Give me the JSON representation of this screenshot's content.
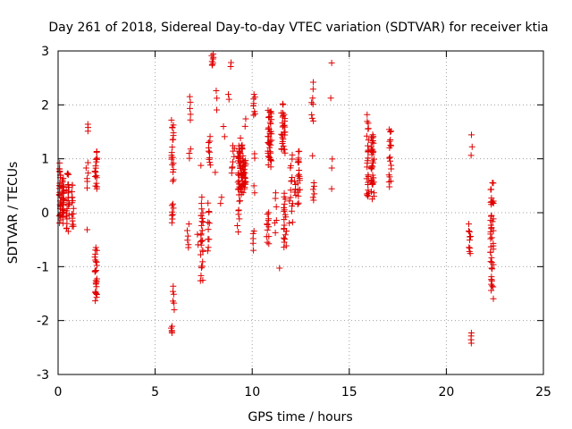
{
  "chart_data": {
    "type": "scatter",
    "title": "Day 261 of 2018, Sidereal Day-to-day VTEC variation (SDTVAR) for receiver ktia",
    "xlabel": "GPS time / hours",
    "ylabel": "SDTVAR / TECUs",
    "xlim": [
      0,
      25
    ],
    "ylim": [
      -3,
      3
    ],
    "grid": true,
    "marker": "+",
    "x_ticks": [
      "0",
      "5",
      "10",
      "15",
      "20",
      "25"
    ],
    "y_ticks": [
      "-3",
      "-2",
      "-1",
      "0",
      "1",
      "2",
      "3"
    ],
    "colors": {
      "series": "#e00000",
      "grid": "#a0a0a0",
      "axis": "#000000"
    },
    "clusters": [
      {
        "x": 0.1,
        "y_min": -0.3,
        "y_max": 0.95,
        "n": 30,
        "spread": 0.05
      },
      {
        "x": 0.25,
        "y_min": -0.2,
        "y_max": 0.7,
        "n": 25,
        "spread": 0.05
      },
      {
        "x": 0.5,
        "y_min": -0.4,
        "y_max": 0.8,
        "n": 25,
        "spread": 0.08
      },
      {
        "x": 0.75,
        "y_min": -0.4,
        "y_max": 0.6,
        "n": 15,
        "spread": 0.05
      },
      {
        "x": 1.5,
        "y_min": 0.4,
        "y_max": 1.0,
        "n": 6,
        "spread": 0.06
      },
      {
        "x": 1.55,
        "y_min": 1.5,
        "y_max": 1.65,
        "n": 3,
        "spread": 0.02
      },
      {
        "x": 1.5,
        "y_min": -0.33,
        "y_max": -0.3,
        "n": 1,
        "spread": 0.01
      },
      {
        "x": 1.95,
        "y_min": -1.7,
        "y_max": -0.6,
        "n": 25,
        "spread": 0.06
      },
      {
        "x": 1.95,
        "y_min": 0.4,
        "y_max": 1.2,
        "n": 18,
        "spread": 0.06
      },
      {
        "x": 5.85,
        "y_min": -2.25,
        "y_max": -2.1,
        "n": 5,
        "spread": 0.03
      },
      {
        "x": 5.95,
        "y_min": -1.8,
        "y_max": -1.35,
        "n": 6,
        "spread": 0.04
      },
      {
        "x": 5.9,
        "y_min": -0.2,
        "y_max": 0.2,
        "n": 8,
        "spread": 0.05
      },
      {
        "x": 5.9,
        "y_min": 0.4,
        "y_max": 1.9,
        "n": 20,
        "spread": 0.06
      },
      {
        "x": 6.7,
        "y_min": -0.7,
        "y_max": -0.2,
        "n": 6,
        "spread": 0.05
      },
      {
        "x": 6.8,
        "y_min": 1.0,
        "y_max": 1.2,
        "n": 3,
        "spread": 0.04
      },
      {
        "x": 6.8,
        "y_min": 1.7,
        "y_max": 2.2,
        "n": 5,
        "spread": 0.04
      },
      {
        "x": 7.2,
        "y_min": -0.6,
        "y_max": -0.4,
        "n": 2,
        "spread": 0.04
      },
      {
        "x": 7.4,
        "y_min": -1.35,
        "y_max": 0.35,
        "n": 28,
        "spread": 0.07
      },
      {
        "x": 7.35,
        "y_min": 0.85,
        "y_max": 0.9,
        "n": 1,
        "spread": 0.01
      },
      {
        "x": 7.75,
        "y_min": -0.8,
        "y_max": 0.2,
        "n": 10,
        "spread": 0.05
      },
      {
        "x": 7.8,
        "y_min": 0.8,
        "y_max": 1.45,
        "n": 10,
        "spread": 0.05
      },
      {
        "x": 7.95,
        "y_min": 2.7,
        "y_max": 2.95,
        "n": 8,
        "spread": 0.05
      },
      {
        "x": 8.15,
        "y_min": 1.9,
        "y_max": 2.3,
        "n": 3,
        "spread": 0.04
      },
      {
        "x": 8.1,
        "y_min": 0.7,
        "y_max": 0.8,
        "n": 1,
        "spread": 0.01
      },
      {
        "x": 8.4,
        "y_min": 0.15,
        "y_max": 0.3,
        "n": 2,
        "spread": 0.04
      },
      {
        "x": 8.55,
        "y_min": 1.4,
        "y_max": 1.6,
        "n": 2,
        "spread": 0.04
      },
      {
        "x": 8.9,
        "y_min": 2.7,
        "y_max": 2.8,
        "n": 2,
        "spread": 0.03
      },
      {
        "x": 8.8,
        "y_min": 2.1,
        "y_max": 2.2,
        "n": 2,
        "spread": 0.03
      },
      {
        "x": 9.0,
        "y_min": 0.7,
        "y_max": 1.3,
        "n": 8,
        "spread": 0.1
      },
      {
        "x": 9.3,
        "y_min": -0.4,
        "y_max": 0.5,
        "n": 10,
        "spread": 0.08
      },
      {
        "x": 9.4,
        "y_min": 0.3,
        "y_max": 1.4,
        "n": 55,
        "spread": 0.15
      },
      {
        "x": 9.6,
        "y_min": 0.4,
        "y_max": 1.0,
        "n": 25,
        "spread": 0.08
      },
      {
        "x": 9.65,
        "y_min": 1.6,
        "y_max": 1.75,
        "n": 2,
        "spread": 0.03
      },
      {
        "x": 10.05,
        "y_min": -0.7,
        "y_max": -0.3,
        "n": 5,
        "spread": 0.05
      },
      {
        "x": 10.1,
        "y_min": 0.35,
        "y_max": 0.5,
        "n": 2,
        "spread": 0.03
      },
      {
        "x": 10.1,
        "y_min": 1.0,
        "y_max": 1.1,
        "n": 2,
        "spread": 0.03
      },
      {
        "x": 10.1,
        "y_min": 1.75,
        "y_max": 2.25,
        "n": 8,
        "spread": 0.05
      },
      {
        "x": 10.8,
        "y_min": -0.6,
        "y_max": 0.05,
        "n": 12,
        "spread": 0.06
      },
      {
        "x": 10.9,
        "y_min": 0.8,
        "y_max": 2.0,
        "n": 40,
        "spread": 0.1
      },
      {
        "x": 11.2,
        "y_min": -0.5,
        "y_max": 0.5,
        "n": 6,
        "spread": 0.05
      },
      {
        "x": 11.4,
        "y_min": -1.05,
        "y_max": -1.0,
        "n": 1,
        "spread": 0.01
      },
      {
        "x": 11.6,
        "y_min": 1.0,
        "y_max": 2.05,
        "n": 30,
        "spread": 0.1
      },
      {
        "x": 11.7,
        "y_min": -0.75,
        "y_max": 0.4,
        "n": 20,
        "spread": 0.08
      },
      {
        "x": 12.0,
        "y_min": -0.3,
        "y_max": 1.2,
        "n": 15,
        "spread": 0.1
      },
      {
        "x": 12.2,
        "y_min": 0.3,
        "y_max": 0.6,
        "n": 5,
        "spread": 0.05
      },
      {
        "x": 12.4,
        "y_min": 0.1,
        "y_max": 1.3,
        "n": 20,
        "spread": 0.06
      },
      {
        "x": 13.1,
        "y_min": 1.6,
        "y_max": 2.45,
        "n": 8,
        "spread": 0.05
      },
      {
        "x": 13.15,
        "y_min": 0.2,
        "y_max": 0.6,
        "n": 6,
        "spread": 0.05
      },
      {
        "x": 13.1,
        "y_min": 1.0,
        "y_max": 1.1,
        "n": 1,
        "spread": 0.01
      },
      {
        "x": 14.1,
        "y_min": 2.75,
        "y_max": 2.8,
        "n": 1,
        "spread": 0.01
      },
      {
        "x": 14.05,
        "y_min": 2.1,
        "y_max": 2.15,
        "n": 1,
        "spread": 0.01
      },
      {
        "x": 14.1,
        "y_min": 0.8,
        "y_max": 1.0,
        "n": 2,
        "spread": 0.03
      },
      {
        "x": 14.1,
        "y_min": 0.4,
        "y_max": 0.5,
        "n": 1,
        "spread": 0.01
      },
      {
        "x": 15.95,
        "y_min": 0.05,
        "y_max": 1.9,
        "n": 25,
        "spread": 0.06
      },
      {
        "x": 16.2,
        "y_min": 0.2,
        "y_max": 1.6,
        "n": 35,
        "spread": 0.08
      },
      {
        "x": 17.1,
        "y_min": 0.4,
        "y_max": 1.7,
        "n": 18,
        "spread": 0.06
      },
      {
        "x": 21.2,
        "y_min": -0.85,
        "y_max": -0.2,
        "n": 10,
        "spread": 0.05
      },
      {
        "x": 21.3,
        "y_min": -2.45,
        "y_max": -2.2,
        "n": 4,
        "spread": 0.03
      },
      {
        "x": 21.3,
        "y_min": 1.05,
        "y_max": 1.45,
        "n": 3,
        "spread": 0.03
      },
      {
        "x": 22.35,
        "y_min": -1.6,
        "y_max": 0.7,
        "n": 45,
        "spread": 0.08
      }
    ]
  }
}
